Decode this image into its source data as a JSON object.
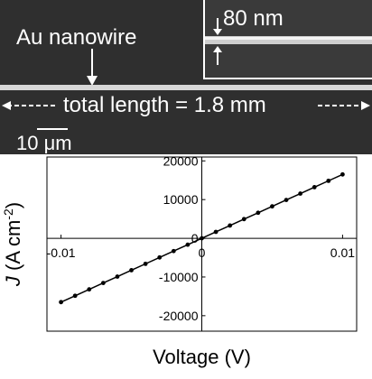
{
  "sem_image": {
    "label_wire": "Au nanowire",
    "label_width": "80 nm",
    "label_length": "total length = 1.8 mm",
    "scale_bar": "10 μm"
  },
  "chart_data": {
    "type": "line",
    "xlabel": "Voltage (V)",
    "ylabel_main": "J",
    "ylabel_unit": " (A cm",
    "ylabel_sup": "-2",
    "ylabel_close": ")",
    "xlim": [
      -0.011,
      0.011
    ],
    "ylim": [
      -24000,
      21000
    ],
    "x_ticks": [
      -0.01,
      0,
      0.01
    ],
    "x_tick_labels": [
      "-0.01",
      "0",
      "0.01"
    ],
    "y_ticks": [
      -20000,
      -10000,
      0,
      10000,
      20000
    ],
    "y_tick_labels": [
      "-20000",
      "-10000",
      "0",
      "10000",
      "20000"
    ],
    "marker": "filled circle",
    "line_color": "#000000",
    "series": [
      {
        "x": [
          -0.01,
          -0.009,
          -0.008,
          -0.007,
          -0.006,
          -0.005,
          -0.004,
          -0.003,
          -0.002,
          -0.001,
          0,
          0.001,
          0.002,
          0.003,
          0.004,
          0.005,
          0.006,
          0.007,
          0.008,
          0.009,
          0.01
        ],
        "values": [
          -16500,
          -14850,
          -13200,
          -11550,
          -9900,
          -8250,
          -6600,
          -4950,
          -3300,
          -1650,
          0,
          1650,
          3300,
          4950,
          6600,
          8250,
          9900,
          11550,
          13200,
          14850,
          16500
        ]
      }
    ]
  }
}
